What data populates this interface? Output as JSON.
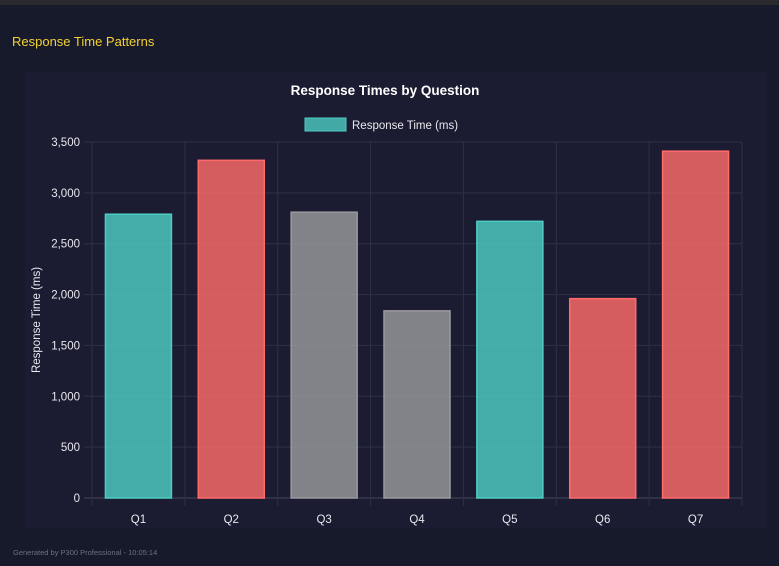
{
  "header": {
    "section_title": "Response Time Patterns"
  },
  "footer": {
    "text": "Generated by P300 Professional - 10:05:14"
  },
  "chart_data": {
    "type": "bar",
    "title": "Response Times by Question",
    "xlabel": "",
    "ylabel": "Response Time (ms)",
    "categories": [
      "Q1",
      "Q2",
      "Q3",
      "Q4",
      "Q5",
      "Q6",
      "Q7"
    ],
    "series": [
      {
        "name": "Response Time (ms)",
        "values": [
          2790,
          3320,
          2810,
          1840,
          2720,
          1960,
          3410
        ]
      }
    ],
    "bar_colors": [
      "#4ecdc4",
      "#ff6b6b",
      "#9a9a9e",
      "#9a9a9e",
      "#4ecdc4",
      "#ff6b6b",
      "#ff6b6b"
    ],
    "ylim": [
      0,
      3500
    ],
    "yticks": [
      "0",
      "500",
      "1,000",
      "1,500",
      "2,000",
      "2,500",
      "3,000",
      "3,500"
    ],
    "grid": true,
    "legend": "top"
  }
}
